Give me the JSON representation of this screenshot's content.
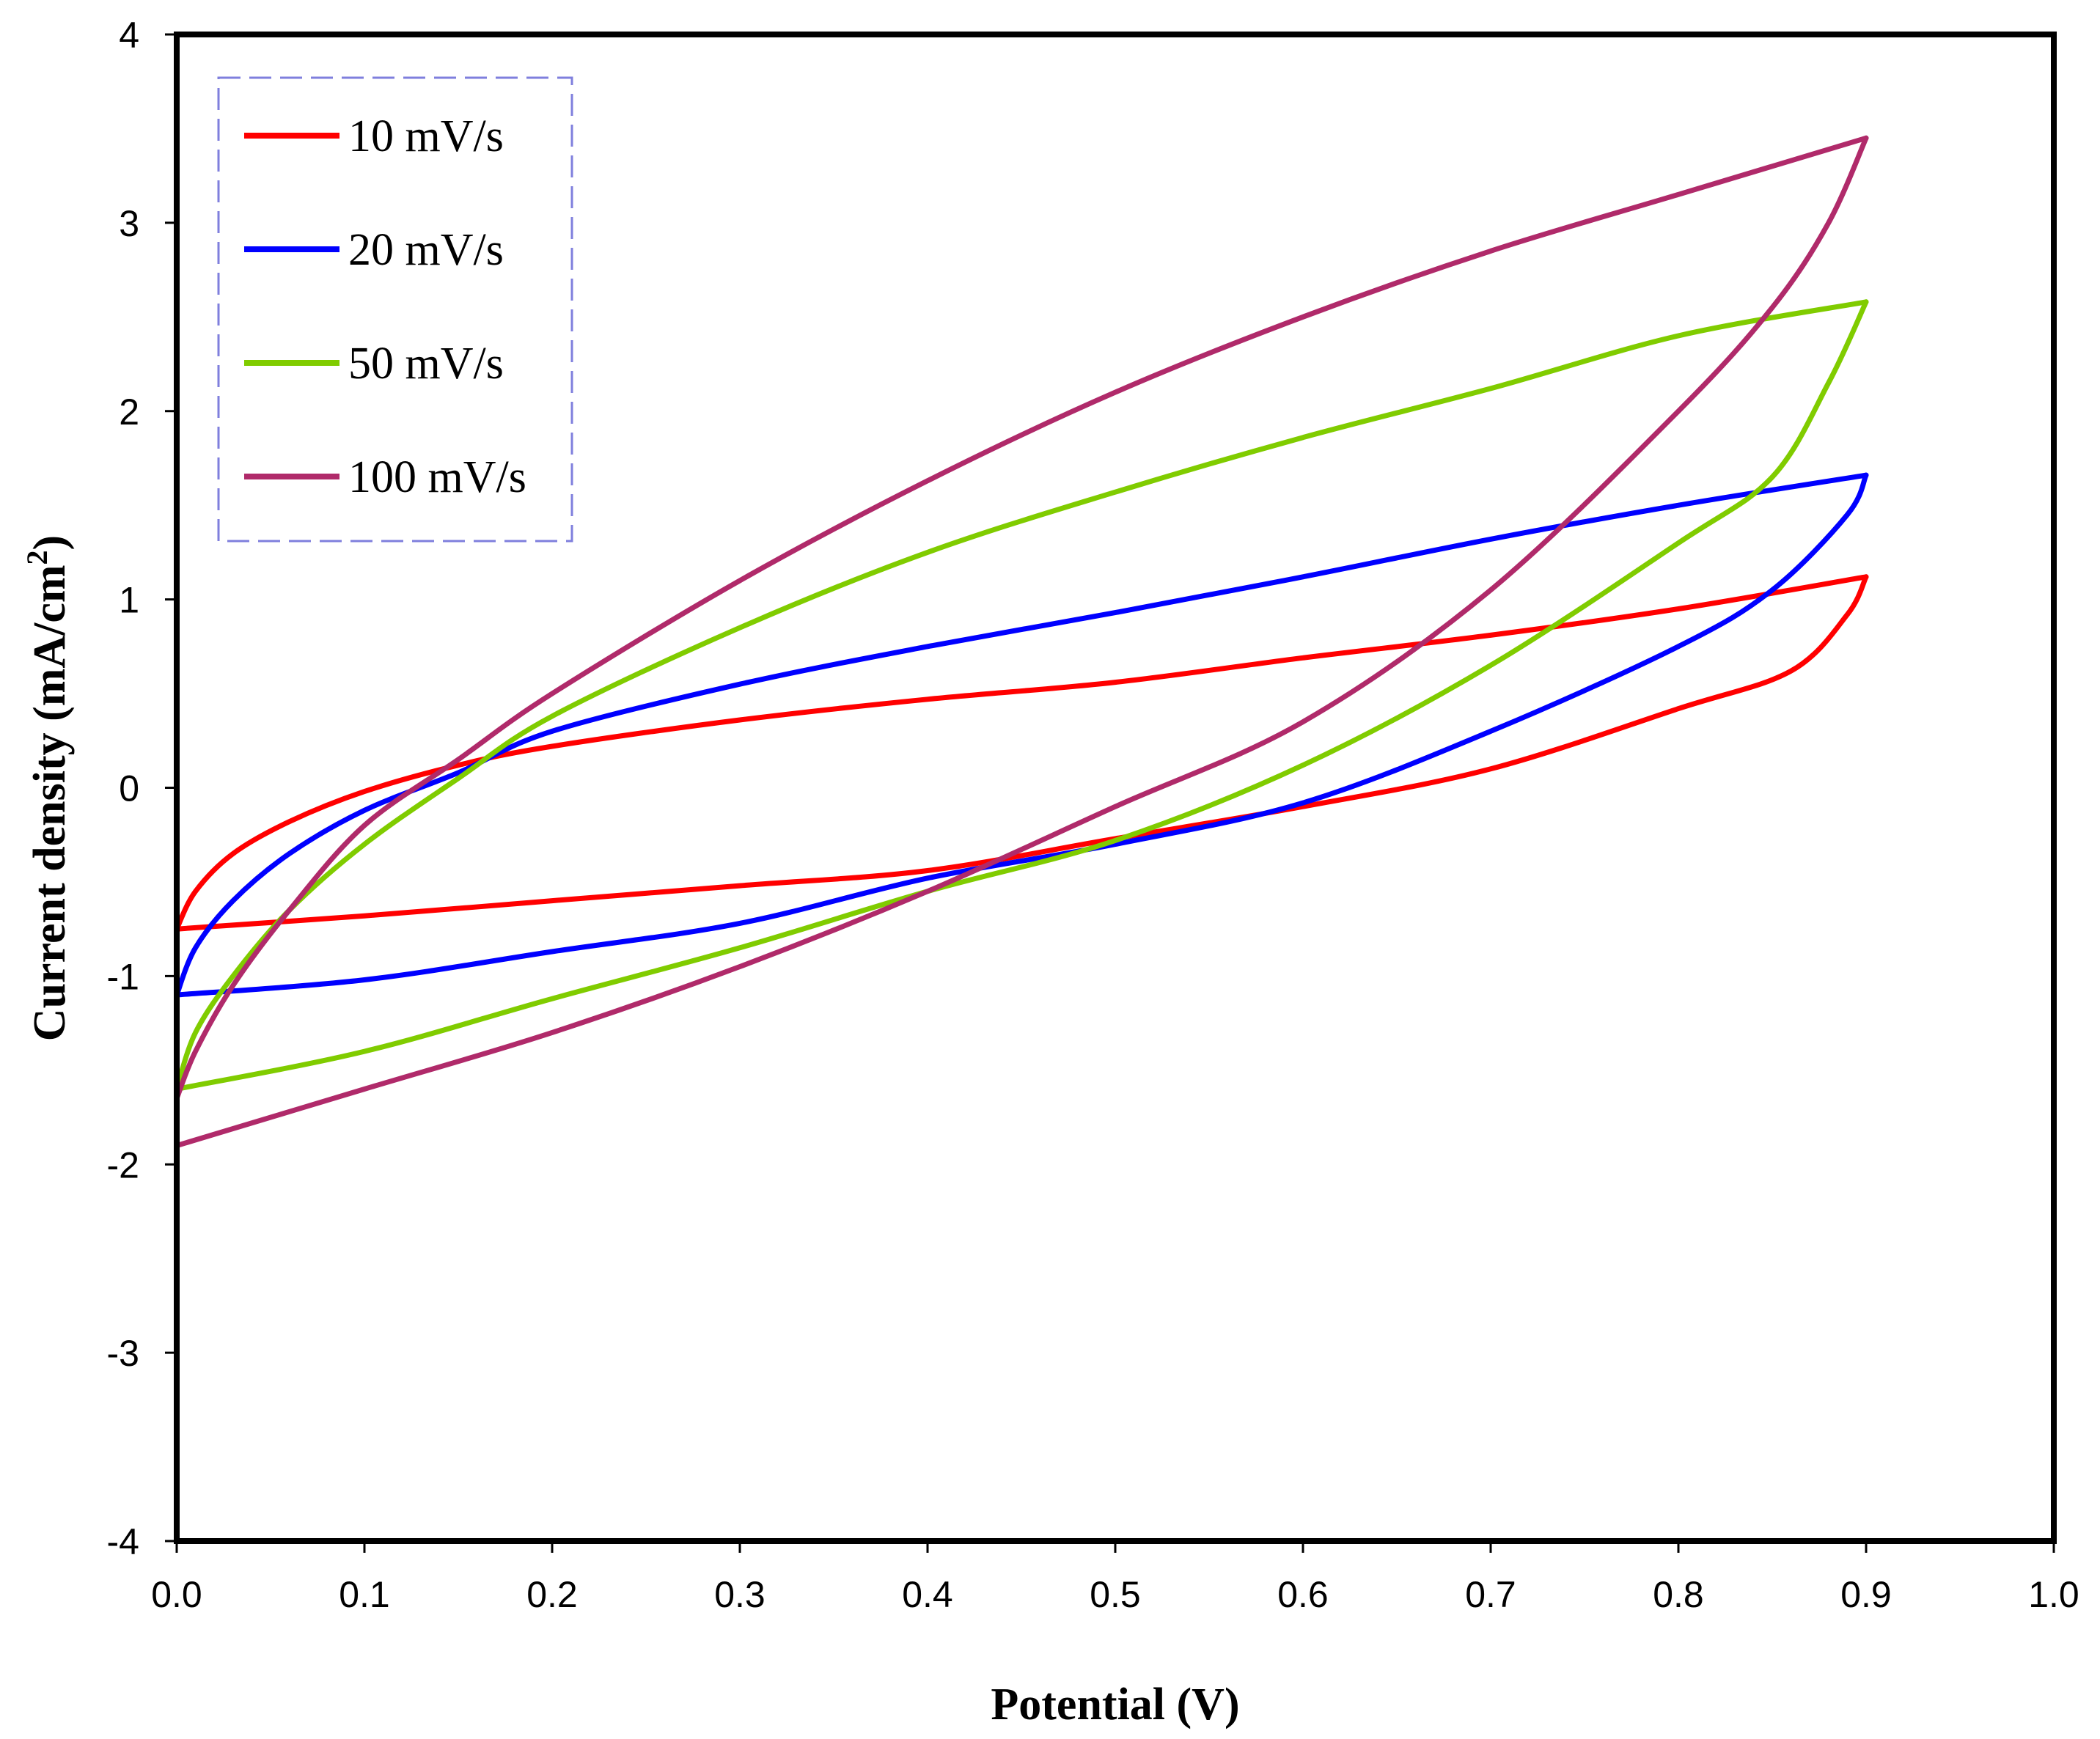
{
  "chart_data": {
    "type": "line",
    "title": "",
    "xlabel": "Potential (V)",
    "ylabel": "Current density (mA/cm",
    "ylabel_sup": "2",
    "ylabel_close": ")",
    "xlim": [
      0.0,
      1.0
    ],
    "ylim": [
      -4,
      4
    ],
    "xticks": [
      "0.0",
      "0.1",
      "0.2",
      "0.3",
      "0.4",
      "0.5",
      "0.6",
      "0.7",
      "0.8",
      "0.9",
      "1.0"
    ],
    "yticks": [
      "4",
      "3",
      "2",
      "1",
      "0",
      "-1",
      "-2",
      "-3",
      "-4"
    ],
    "grid": false,
    "legend_position": "top-left",
    "series": [
      {
        "name": "10 mV/s",
        "color": "#ff0000",
        "forward": [
          [
            0.0,
            -0.75
          ],
          [
            0.01,
            -0.55
          ],
          [
            0.03,
            -0.35
          ],
          [
            0.06,
            -0.18
          ],
          [
            0.1,
            -0.02
          ],
          [
            0.15,
            0.12
          ],
          [
            0.2,
            0.22
          ],
          [
            0.3,
            0.36
          ],
          [
            0.4,
            0.47
          ],
          [
            0.5,
            0.56
          ],
          [
            0.6,
            0.69
          ],
          [
            0.7,
            0.81
          ],
          [
            0.8,
            0.95
          ],
          [
            0.9,
            1.12
          ]
        ],
        "reverse": [
          [
            0.9,
            1.12
          ],
          [
            0.89,
            0.92
          ],
          [
            0.86,
            0.62
          ],
          [
            0.8,
            0.42
          ],
          [
            0.7,
            0.1
          ],
          [
            0.6,
            -0.1
          ],
          [
            0.5,
            -0.27
          ],
          [
            0.4,
            -0.44
          ],
          [
            0.3,
            -0.52
          ],
          [
            0.2,
            -0.6
          ],
          [
            0.1,
            -0.68
          ],
          [
            0.0,
            -0.75
          ]
        ]
      },
      {
        "name": "20 mV/s",
        "color": "#0000ff",
        "forward": [
          [
            0.0,
            -1.1
          ],
          [
            0.01,
            -0.85
          ],
          [
            0.03,
            -0.6
          ],
          [
            0.06,
            -0.35
          ],
          [
            0.1,
            -0.12
          ],
          [
            0.15,
            0.08
          ],
          [
            0.2,
            0.3
          ],
          [
            0.3,
            0.55
          ],
          [
            0.4,
            0.75
          ],
          [
            0.5,
            0.93
          ],
          [
            0.6,
            1.12
          ],
          [
            0.7,
            1.32
          ],
          [
            0.8,
            1.5
          ],
          [
            0.9,
            1.66
          ]
        ],
        "reverse": [
          [
            0.9,
            1.66
          ],
          [
            0.89,
            1.45
          ],
          [
            0.85,
            1.05
          ],
          [
            0.8,
            0.75
          ],
          [
            0.7,
            0.3
          ],
          [
            0.6,
            -0.08
          ],
          [
            0.5,
            -0.3
          ],
          [
            0.4,
            -0.48
          ],
          [
            0.3,
            -0.72
          ],
          [
            0.2,
            -0.87
          ],
          [
            0.1,
            -1.02
          ],
          [
            0.0,
            -1.1
          ]
        ]
      },
      {
        "name": "50 mV/s",
        "color": "#80cc00",
        "forward": [
          [
            0.0,
            -1.6
          ],
          [
            0.01,
            -1.3
          ],
          [
            0.03,
            -1.0
          ],
          [
            0.06,
            -0.65
          ],
          [
            0.1,
            -0.3
          ],
          [
            0.15,
            0.05
          ],
          [
            0.2,
            0.38
          ],
          [
            0.3,
            0.85
          ],
          [
            0.4,
            1.25
          ],
          [
            0.5,
            1.57
          ],
          [
            0.6,
            1.86
          ],
          [
            0.7,
            2.12
          ],
          [
            0.8,
            2.4
          ],
          [
            0.9,
            2.58
          ]
        ],
        "reverse": [
          [
            0.9,
            2.58
          ],
          [
            0.88,
            2.15
          ],
          [
            0.85,
            1.65
          ],
          [
            0.8,
            1.3
          ],
          [
            0.7,
            0.65
          ],
          [
            0.6,
            0.12
          ],
          [
            0.5,
            -0.28
          ],
          [
            0.4,
            -0.55
          ],
          [
            0.3,
            -0.85
          ],
          [
            0.2,
            -1.12
          ],
          [
            0.1,
            -1.4
          ],
          [
            0.0,
            -1.6
          ]
        ]
      },
      {
        "name": "100 mV/s",
        "color": "#b02a6a",
        "forward": [
          [
            0.0,
            -1.65
          ],
          [
            0.01,
            -1.4
          ],
          [
            0.03,
            -1.05
          ],
          [
            0.06,
            -0.65
          ],
          [
            0.1,
            -0.2
          ],
          [
            0.15,
            0.15
          ],
          [
            0.2,
            0.5
          ],
          [
            0.3,
            1.1
          ],
          [
            0.4,
            1.63
          ],
          [
            0.5,
            2.1
          ],
          [
            0.6,
            2.5
          ],
          [
            0.7,
            2.85
          ],
          [
            0.8,
            3.15
          ],
          [
            0.9,
            3.45
          ]
        ],
        "reverse": [
          [
            0.9,
            3.45
          ],
          [
            0.88,
            3.0
          ],
          [
            0.85,
            2.55
          ],
          [
            0.8,
            2.0
          ],
          [
            0.7,
            1.05
          ],
          [
            0.6,
            0.35
          ],
          [
            0.5,
            -0.1
          ],
          [
            0.4,
            -0.55
          ],
          [
            0.3,
            -0.95
          ],
          [
            0.2,
            -1.3
          ],
          [
            0.1,
            -1.6
          ],
          [
            0.0,
            -1.9
          ]
        ]
      }
    ]
  }
}
